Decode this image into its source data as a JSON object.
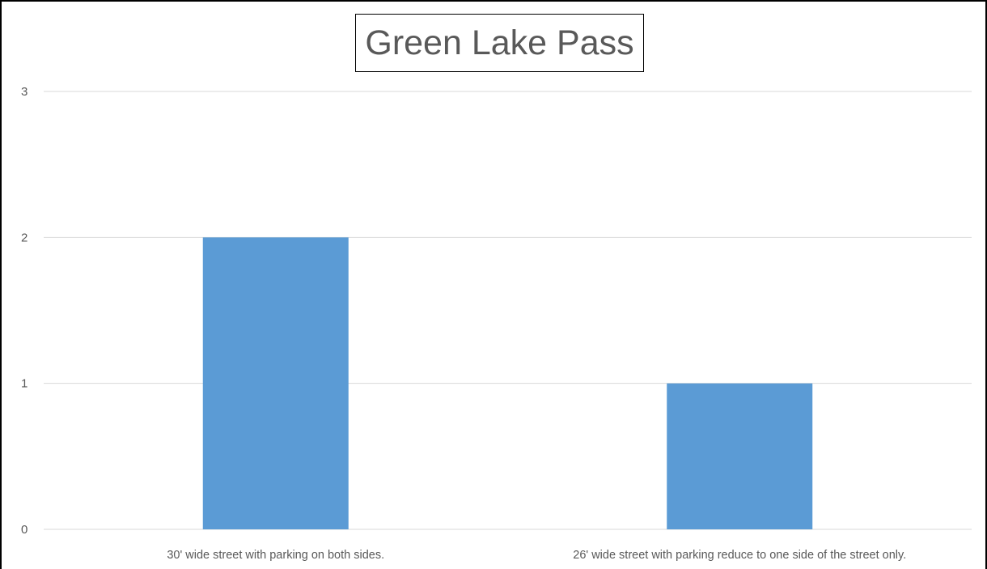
{
  "chart_data": {
    "type": "bar",
    "title": "Green Lake Pass",
    "xlabel": "",
    "ylabel": "",
    "categories": [
      "30' wide street with parking on both sides.",
      "26' wide street with parking reduce to one side of the street only."
    ],
    "values": [
      2,
      1
    ],
    "ylim": [
      0,
      3
    ],
    "yticks": [
      "0",
      "1",
      "2",
      "3"
    ],
    "grid": true,
    "legend": "none",
    "bar_color": "#5b9bd5",
    "grid_color": "#d9d9d9"
  }
}
